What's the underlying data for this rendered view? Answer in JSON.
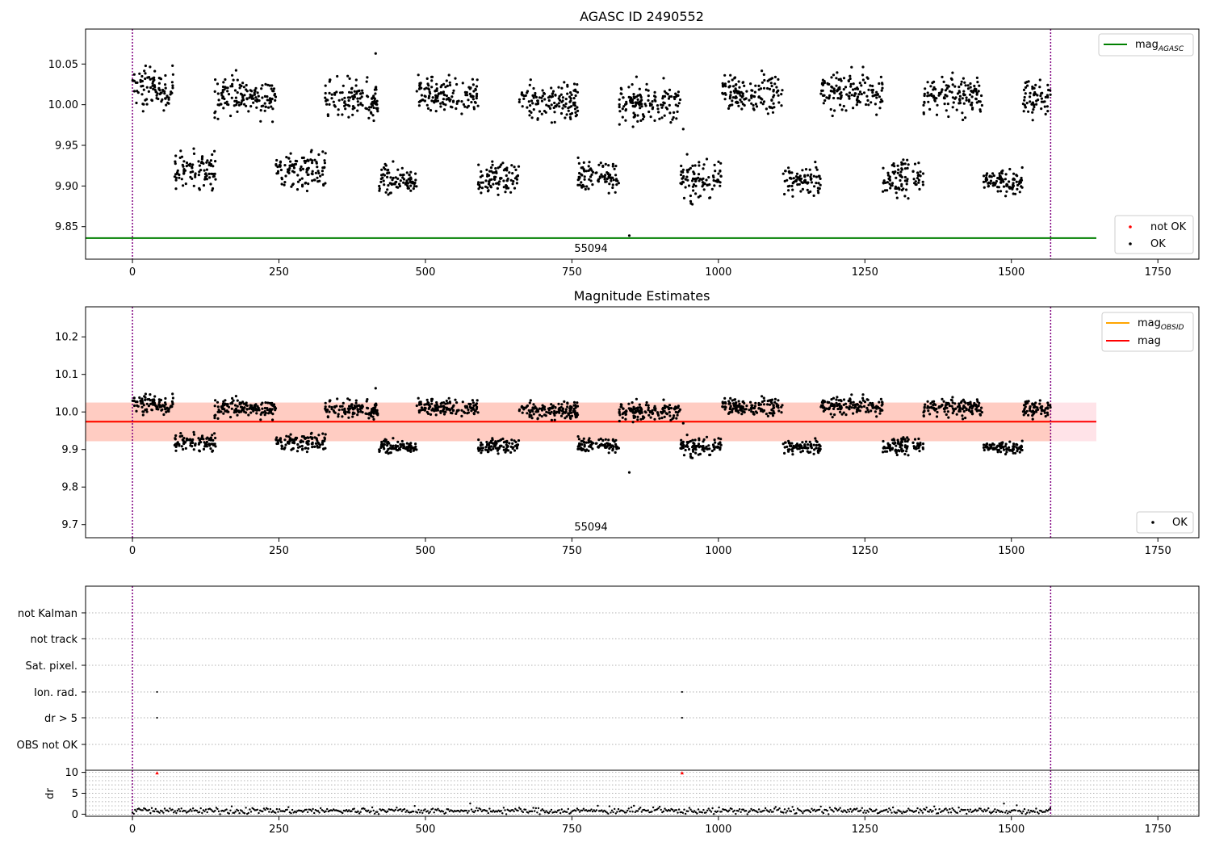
{
  "chart_data": [
    {
      "type": "scatter",
      "title": "AGASC ID 2490552",
      "xlim": [
        -80,
        1820
      ],
      "ylim": [
        9.81,
        10.093
      ],
      "xticks": [
        0,
        250,
        500,
        750,
        1000,
        1250,
        1500,
        1750
      ],
      "yticks": [
        9.85,
        9.9,
        9.95,
        10.0,
        10.05
      ],
      "ytick_labels": [
        "9.85",
        "9.90",
        "9.95",
        "10.00",
        "10.05"
      ],
      "obsid_label": "55094",
      "obs_boundaries": [
        0,
        1567
      ],
      "ref_line": {
        "name": "mag_AGASC",
        "value": 9.836,
        "x_range": [
          -80,
          1645
        ],
        "color": "#008000"
      },
      "series": [
        {
          "name": "not OK",
          "color": "#ff0000",
          "points": []
        },
        {
          "name": "OK",
          "color": "#000000",
          "clusters": [
            {
              "x": [
                0,
                70
              ],
              "center": 10.02,
              "spread": 0.022
            },
            {
              "x": [
                72,
                142
              ],
              "center": 9.92,
              "spread": 0.02
            },
            {
              "x": [
                140,
                245
              ],
              "center": 10.01,
              "spread": 0.022
            },
            {
              "x": [
                245,
                330
              ],
              "center": 9.92,
              "spread": 0.022
            },
            {
              "x": [
                328,
                420
              ],
              "center": 10.005,
              "spread": 0.022
            },
            {
              "x": [
                418,
                485
              ],
              "center": 9.908,
              "spread": 0.016
            },
            {
              "x": [
                485,
                590
              ],
              "center": 10.012,
              "spread": 0.018
            },
            {
              "x": [
                590,
                660
              ],
              "center": 9.91,
              "spread": 0.016
            },
            {
              "x": [
                660,
                760
              ],
              "center": 10.005,
              "spread": 0.024
            },
            {
              "x": [
                760,
                830
              ],
              "center": 9.912,
              "spread": 0.018
            },
            {
              "x": [
                830,
                935
              ],
              "center": 10.002,
              "spread": 0.02
            },
            {
              "x": [
                935,
                1005
              ],
              "center": 9.908,
              "spread": 0.022
            },
            {
              "x": [
                1005,
                1110
              ],
              "center": 10.015,
              "spread": 0.02
            },
            {
              "x": [
                1110,
                1175
              ],
              "center": 9.905,
              "spread": 0.018
            },
            {
              "x": [
                1175,
                1280
              ],
              "center": 10.015,
              "spread": 0.02
            },
            {
              "x": [
                1280,
                1350
              ],
              "center": 9.91,
              "spread": 0.02
            },
            {
              "x": [
                1350,
                1450
              ],
              "center": 10.012,
              "spread": 0.022
            },
            {
              "x": [
                1450,
                1520
              ],
              "center": 9.905,
              "spread": 0.014
            },
            {
              "x": [
                1520,
                1567
              ],
              "center": 10.01,
              "spread": 0.02
            }
          ],
          "outliers": [
            [
              848,
              9.839
            ],
            [
              940,
              9.97
            ],
            [
              415,
              10.063
            ]
          ]
        }
      ],
      "legends": [
        {
          "position": "top-right",
          "entries": [
            {
              "label": "mag",
              "sub": "AGASC",
              "kind": "line",
              "color": "#008000"
            }
          ]
        },
        {
          "position": "bottom-right",
          "entries": [
            {
              "label": "not OK",
              "kind": "dot",
              "color": "#ff0000"
            },
            {
              "label": "OK",
              "kind": "dot",
              "color": "#000000"
            }
          ]
        }
      ]
    },
    {
      "type": "scatter",
      "title": "Magnitude Estimates",
      "xlim": [
        -80,
        1820
      ],
      "ylim": [
        9.665,
        10.28
      ],
      "xticks": [
        0,
        250,
        500,
        750,
        1000,
        1250,
        1500,
        1750
      ],
      "yticks": [
        9.7,
        9.8,
        9.9,
        10.0,
        10.1,
        10.2
      ],
      "ytick_labels": [
        "9.7",
        "9.8",
        "9.9",
        "10.0",
        "10.1",
        "10.2"
      ],
      "obsid_label": "55094",
      "obs_boundaries": [
        0,
        1567
      ],
      "band_pink": {
        "y": [
          9.922,
          10.025
        ],
        "x_range": [
          -80,
          1645
        ],
        "color": "#ffc0cb"
      },
      "band_orange": {
        "y": [
          9.922,
          10.025
        ],
        "x_range": [
          -80,
          1567
        ],
        "color": "#ffa07a"
      },
      "lines": [
        {
          "name": "mag_OBSID",
          "value": 9.974,
          "x_range": [
            -80,
            1567
          ],
          "color": "#ffa500"
        },
        {
          "name": "mag",
          "value": 9.974,
          "x_range": [
            -80,
            1645
          ],
          "color": "#ff0000"
        }
      ],
      "legends": [
        {
          "position": "top-right",
          "entries": [
            {
              "label": "mag",
              "sub": "OBSID",
              "kind": "line",
              "color": "#ffa500"
            },
            {
              "label": "mag",
              "kind": "line",
              "color": "#ff0000"
            }
          ]
        },
        {
          "position": "bottom-right",
          "entries": [
            {
              "label": "OK",
              "kind": "dot",
              "color": "#000000"
            }
          ]
        }
      ]
    },
    {
      "type": "scatter",
      "title": "",
      "xlim": [
        -80,
        1820
      ],
      "xticks": [
        0,
        250,
        500,
        750,
        1000,
        1250,
        1500,
        1750
      ],
      "flag_labels": [
        "not Kalman",
        "not track",
        "Sat. pixel.",
        "Ion. rad.",
        "dr > 5",
        "OBS not OK"
      ],
      "flag_points": [
        {
          "flag": "Ion. rad.",
          "x": [
            42,
            938
          ]
        },
        {
          "flag": "dr > 5",
          "x": [
            42,
            938
          ]
        }
      ],
      "dr": {
        "ylabel": "dr",
        "yticks": [
          0,
          5,
          10
        ],
        "ytick_labels": [
          "0",
          "5",
          "10"
        ],
        "ylim": [
          -0.5,
          10.5
        ],
        "outliers": [
          [
            42,
            9.8
          ],
          [
            938,
            9.8
          ]
        ],
        "outlier_color": "#ff0000",
        "baseline_mean": 0.8
      },
      "obs_boundaries": [
        0,
        1567
      ]
    }
  ]
}
